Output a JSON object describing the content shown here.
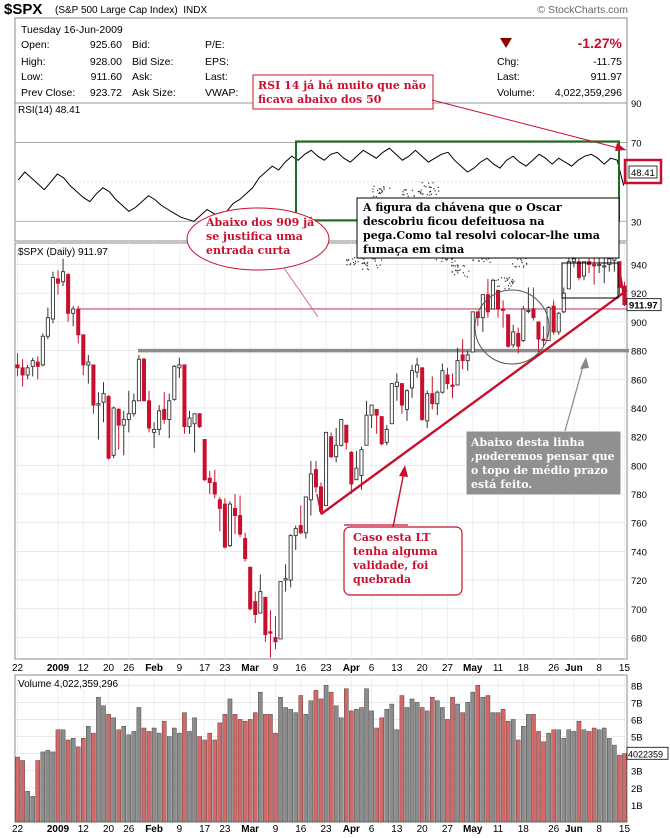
{
  "header": {
    "symbol": "$SPX",
    "index_name": "(S&P 500 Large Cap Index)",
    "exchange": "INDX",
    "date_line": "Tuesday  16-Jun-2009",
    "brand": "© StockCharts.com",
    "change_pct": "-1.27%",
    "quote": [
      {
        "label": "Open:",
        "value": "925.60"
      },
      {
        "label": "High:",
        "value": "928.00"
      },
      {
        "label": "Low:",
        "value": "911.60"
      },
      {
        "label": "Prev Close:",
        "value": "923.72"
      }
    ],
    "quote2": [
      "Bid:",
      "Bid Size:",
      "Ask:",
      "Ask Size:"
    ],
    "quote3": [
      "P/E:",
      "EPS:",
      "Last:",
      "VWAP:"
    ],
    "stats": [
      {
        "label": "Chg:",
        "value": "-11.75"
      },
      {
        "label": "Last:",
        "value": "911.97"
      },
      {
        "label": "Volume:",
        "value": "4,022,359,296"
      }
    ]
  },
  "colors": {
    "up": "#888888",
    "down": "#c8102e",
    "volume_up": "#8c8c8c",
    "volume_down": "#d36868",
    "rsi_box": "#1f6b1f"
  },
  "annotations": {
    "rsi_note": [
      "RSI 14  já há muito que não",
      "ficava abaixo dos 50"
    ],
    "chavena_note": [
      "A figura da chávena que o Oscar",
      "descobriu ficou defeituosa na",
      "pega.Como tal resolvi colocar-lhe uma",
      "fumaça em cima"
    ],
    "short_entry_note": [
      "Abaixo dos 909 já",
      "se justifica uma",
      "entrada curta"
    ],
    "line_note": [
      "Abaixo desta linha",
      ",poderemos pensar que",
      "o topo de médio prazo",
      "está feito."
    ],
    "lt_note": [
      "Caso esta LT",
      "tenha alguma",
      "validade, foi",
      "quebrada"
    ]
  },
  "chart_data": [
    {
      "type": "line",
      "title": "RSI(14) 48.41",
      "series": [
        {
          "name": "RSI(14)",
          "values": [
            51,
            55,
            52,
            49,
            46,
            50,
            54,
            52,
            48,
            45,
            42,
            40,
            44,
            47,
            45,
            41,
            38,
            35,
            37,
            40,
            43,
            41,
            38,
            36,
            34,
            32,
            31,
            30,
            33,
            36,
            34,
            32,
            35,
            39,
            41,
            44,
            47,
            52,
            55,
            58,
            56,
            60,
            63,
            61,
            64,
            66,
            63,
            61,
            64,
            65,
            62,
            60,
            63,
            66,
            64,
            62,
            65,
            67,
            64,
            61,
            63,
            66,
            63,
            60,
            62,
            64,
            65,
            61,
            58,
            55,
            57,
            60,
            62,
            59,
            57,
            61,
            63,
            60,
            58,
            61,
            64,
            62,
            59,
            62,
            60,
            58,
            61,
            63,
            64,
            62,
            59,
            62,
            61,
            48
          ]
        }
      ],
      "ylim": [
        20,
        90
      ],
      "yticks": [
        30,
        70,
        90
      ],
      "current_value": "48.41"
    },
    {
      "type": "candlestick",
      "title": "$SPX (Daily) 911.97",
      "x": [
        "2008-12-22",
        "2008-12-23",
        "2008-12-24",
        "2008-12-26",
        "2008-12-29",
        "2008-12-30",
        "2008-12-31",
        "2009-01-02",
        "2009-01-05",
        "2009-01-06",
        "2009-01-07",
        "2009-01-08",
        "2009-01-09",
        "2009-01-12",
        "2009-01-13",
        "2009-01-14",
        "2009-01-15",
        "2009-01-16",
        "2009-01-20",
        "2009-01-21",
        "2009-01-22",
        "2009-01-23",
        "2009-01-26",
        "2009-01-27",
        "2009-01-28",
        "2009-01-29",
        "2009-01-30",
        "2009-02-02",
        "2009-02-03",
        "2009-02-04",
        "2009-02-05",
        "2009-02-06",
        "2009-02-09",
        "2009-02-10",
        "2009-02-11",
        "2009-02-12",
        "2009-02-13",
        "2009-02-17",
        "2009-02-18",
        "2009-02-19",
        "2009-02-20",
        "2009-02-23",
        "2009-02-24",
        "2009-02-25",
        "2009-02-26",
        "2009-02-27",
        "2009-03-02",
        "2009-03-03",
        "2009-03-04",
        "2009-03-05",
        "2009-03-06",
        "2009-03-09",
        "2009-03-10",
        "2009-03-11",
        "2009-03-12",
        "2009-03-13",
        "2009-03-16",
        "2009-03-17",
        "2009-03-18",
        "2009-03-19",
        "2009-03-20",
        "2009-03-23",
        "2009-03-24",
        "2009-03-25",
        "2009-03-26",
        "2009-03-27",
        "2009-03-30",
        "2009-03-31",
        "2009-04-01",
        "2009-04-02",
        "2009-04-03",
        "2009-04-06",
        "2009-04-07",
        "2009-04-08",
        "2009-04-09",
        "2009-04-13",
        "2009-04-14",
        "2009-04-15",
        "2009-04-16",
        "2009-04-17",
        "2009-04-20",
        "2009-04-21",
        "2009-04-22",
        "2009-04-23",
        "2009-04-24",
        "2009-04-27",
        "2009-04-28",
        "2009-04-29",
        "2009-04-30",
        "2009-05-01",
        "2009-05-04",
        "2009-05-05",
        "2009-05-06",
        "2009-05-07",
        "2009-05-08",
        "2009-05-11",
        "2009-05-12",
        "2009-05-13",
        "2009-05-14",
        "2009-05-15",
        "2009-05-18",
        "2009-05-19",
        "2009-05-20",
        "2009-05-21",
        "2009-05-22",
        "2009-05-26",
        "2009-05-27",
        "2009-05-28",
        "2009-05-29",
        "2009-06-01",
        "2009-06-02",
        "2009-06-03",
        "2009-06-04",
        "2009-06-05",
        "2009-06-08",
        "2009-06-09",
        "2009-06-10",
        "2009-06-11",
        "2009-06-12",
        "2009-06-15",
        "2009-06-16"
      ],
      "ohlc": [
        [
          870,
          878,
          862,
          868
        ],
        [
          868,
          874,
          855,
          863
        ],
        [
          863,
          870,
          860,
          868
        ],
        [
          869,
          875,
          862,
          873
        ],
        [
          872,
          876,
          860,
          869
        ],
        [
          870,
          892,
          869,
          890
        ],
        [
          890,
          910,
          888,
          903
        ],
        [
          902,
          935,
          899,
          931
        ],
        [
          930,
          936,
          919,
          927
        ],
        [
          928,
          944,
          925,
          935
        ],
        [
          933,
          934,
          900,
          906
        ],
        [
          906,
          911,
          897,
          909
        ],
        [
          909,
          911,
          885,
          891
        ],
        [
          891,
          891,
          863,
          870
        ],
        [
          870,
          877,
          857,
          872
        ],
        [
          870,
          870,
          836,
          842
        ],
        [
          842,
          851,
          818,
          843
        ],
        [
          844,
          858,
          830,
          850
        ],
        [
          848,
          849,
          804,
          805
        ],
        [
          807,
          841,
          805,
          840
        ],
        [
          839,
          840,
          811,
          828
        ],
        [
          828,
          838,
          807,
          832
        ],
        [
          832,
          852,
          823,
          836
        ],
        [
          836,
          850,
          834,
          845
        ],
        [
          845,
          877,
          845,
          874
        ],
        [
          874,
          875,
          845,
          845
        ],
        [
          845,
          852,
          823,
          826
        ],
        [
          823,
          830,
          812,
          825
        ],
        [
          825,
          842,
          821,
          838
        ],
        [
          839,
          851,
          829,
          832
        ],
        [
          832,
          850,
          819,
          845
        ],
        [
          846,
          870,
          845,
          869
        ],
        [
          868,
          875,
          861,
          870
        ],
        [
          870,
          870,
          822,
          827
        ],
        [
          827,
          838,
          822,
          833
        ],
        [
          829,
          835,
          809,
          836
        ],
        [
          836,
          836,
          826,
          827
        ],
        [
          818,
          818,
          789,
          790
        ],
        [
          791,
          796,
          780,
          788
        ],
        [
          788,
          797,
          777,
          780
        ],
        [
          776,
          778,
          754,
          770
        ],
        [
          773,
          777,
          742,
          743
        ],
        [
          744,
          775,
          743,
          773
        ],
        [
          770,
          780,
          752,
          765
        ],
        [
          765,
          779,
          750,
          752
        ],
        [
          749,
          753,
          733,
          735
        ],
        [
          729,
          729,
          699,
          700
        ],
        [
          705,
          712,
          690,
          696
        ],
        [
          697,
          724,
          697,
          712
        ],
        [
          708,
          708,
          677,
          682
        ],
        [
          684,
          699,
          666,
          683
        ],
        [
          680,
          695,
          672,
          677
        ],
        [
          679,
          719,
          679,
          719
        ],
        [
          720,
          731,
          712,
          721
        ],
        [
          720,
          752,
          715,
          751
        ],
        [
          751,
          758,
          741,
          756
        ],
        [
          758,
          772,
          752,
          753
        ],
        [
          753,
          778,
          749,
          778
        ],
        [
          776,
          803,
          765,
          794
        ],
        [
          797,
          803,
          781,
          785
        ],
        [
          785,
          788,
          766,
          768
        ],
        [
          772,
          823,
          772,
          823
        ],
        [
          820,
          823,
          805,
          806
        ],
        [
          806,
          826,
          802,
          814
        ],
        [
          814,
          832,
          813,
          832
        ],
        [
          828,
          828,
          811,
          816
        ],
        [
          809,
          810,
          780,
          787
        ],
        [
          790,
          810,
          790,
          798
        ],
        [
          793,
          813,
          783,
          811
        ],
        [
          814,
          845,
          814,
          835
        ],
        [
          835,
          842,
          826,
          842
        ],
        [
          839,
          839,
          822,
          835
        ],
        [
          834,
          834,
          814,
          815
        ],
        [
          816,
          828,
          814,
          825
        ],
        [
          829,
          857,
          829,
          857
        ],
        [
          855,
          864,
          845,
          858
        ],
        [
          857,
          857,
          836,
          842
        ],
        [
          839,
          853,
          831,
          852
        ],
        [
          854,
          870,
          847,
          866
        ],
        [
          865,
          875,
          861,
          870
        ],
        [
          868,
          868,
          831,
          832
        ],
        [
          831,
          852,
          826,
          850
        ],
        [
          850,
          862,
          839,
          843
        ],
        [
          843,
          852,
          835,
          851
        ],
        [
          851,
          871,
          850,
          866
        ],
        [
          863,
          868,
          853,
          857
        ],
        [
          856,
          864,
          847,
          855
        ],
        [
          856,
          882,
          856,
          873
        ],
        [
          877,
          888,
          867,
          873
        ],
        [
          873,
          880,
          866,
          877
        ],
        [
          879,
          907,
          879,
          907
        ],
        [
          907,
          907,
          897,
          903
        ],
        [
          903,
          919,
          893,
          919
        ],
        [
          919,
          930,
          903,
          907
        ],
        [
          909,
          930,
          909,
          929
        ],
        [
          922,
          922,
          903,
          909
        ],
        [
          909,
          915,
          896,
          908
        ],
        [
          905,
          905,
          882,
          883
        ],
        [
          884,
          898,
          882,
          893
        ],
        [
          892,
          896,
          878,
          883
        ],
        [
          887,
          911,
          886,
          909
        ],
        [
          908,
          924,
          906,
          908
        ],
        [
          909,
          924,
          901,
          903
        ],
        [
          900,
          900,
          879,
          888
        ],
        [
          888,
          897,
          883,
          887
        ],
        [
          887,
          911,
          887,
          910
        ],
        [
          911,
          915,
          891,
          893
        ],
        [
          893,
          907,
          891,
          906
        ],
        [
          907,
          924,
          906,
          920
        ],
        [
          923,
          947,
          923,
          942
        ],
        [
          942,
          950,
          938,
          944
        ],
        [
          942,
          944,
          929,
          931
        ],
        [
          932,
          942,
          929,
          942
        ],
        [
          942,
          951,
          934,
          940
        ],
        [
          940,
          946,
          926,
          939
        ],
        [
          940,
          956,
          934,
          940
        ],
        [
          939,
          945,
          927,
          939
        ],
        [
          940,
          948,
          935,
          944
        ],
        [
          943,
          946,
          935,
          946
        ],
        [
          942,
          942,
          919,
          924
        ],
        [
          925,
          928,
          911,
          912
        ]
      ],
      "ylim": [
        665,
        955
      ],
      "yticks": [
        680,
        700,
        720,
        740,
        760,
        780,
        800,
        820,
        840,
        860,
        880,
        900,
        920,
        940
      ],
      "x_ticks": [
        "22",
        "2009",
        "12",
        "20",
        "26",
        "Feb",
        "9",
        "17",
        "23",
        "Mar",
        "9",
        "16",
        "23",
        "Apr",
        "6",
        "13",
        "20",
        "27",
        "May",
        "11",
        "18",
        "26",
        "Jun",
        "8",
        "15"
      ],
      "last_value": "911.97",
      "price_levels": [
        909,
        880
      ]
    },
    {
      "type": "bar",
      "title": "Volume 4,022,359,296",
      "series": [
        {
          "name": "Volume",
          "values": [
            3.8,
            3.6,
            1.8,
            1.5,
            3.6,
            4.1,
            4.2,
            4.1,
            5.4,
            5.4,
            4.8,
            4.9,
            4.4,
            4.9,
            5.6,
            5.2,
            7.3,
            6.8,
            6.3,
            6.1,
            5.4,
            5.6,
            5.1,
            5.3,
            6.7,
            5.5,
            5.3,
            5.5,
            5.2,
            5.9,
            5.0,
            5.5,
            5.2,
            6.4,
            5.3,
            6.1,
            5.0,
            4.8,
            5.2,
            4.8,
            5.8,
            6.3,
            7.2,
            6.3,
            6.0,
            5.9,
            6.0,
            6.4,
            7.6,
            6.3,
            6.3,
            5.2,
            7.3,
            6.7,
            6.6,
            6.4,
            7.4,
            6.3,
            7.1,
            7.7,
            7.2,
            8.0,
            7.6,
            6.8,
            6.1,
            7.8,
            6.5,
            6.6,
            6.7,
            7.8,
            6.5,
            5.5,
            6.1,
            6.6,
            6.9,
            5.4,
            7.4,
            6.7,
            7.2,
            7.0,
            6.7,
            6.5,
            7.3,
            7.1,
            6.7,
            6.0,
            7.3,
            6.9,
            6.4,
            7.0,
            7.6,
            8.0,
            7.3,
            7.4,
            6.4,
            6.4,
            6.6,
            5.9,
            6.0,
            4.8,
            5.6,
            6.3,
            6.3,
            5.3,
            4.7,
            5.2,
            5.4,
            5.4,
            4.9,
            5.4,
            5.3,
            5.9,
            5.4,
            5.3,
            5.5,
            5.4,
            5.5,
            4.9,
            4.5,
            3.9,
            4.0
          ]
        }
      ],
      "ylim": [
        0,
        8.6
      ],
      "yticks": [
        "1B",
        "2B",
        "3B",
        "4B",
        "5B",
        "6B",
        "7B",
        "8B"
      ],
      "current_value": "4022359"
    }
  ]
}
